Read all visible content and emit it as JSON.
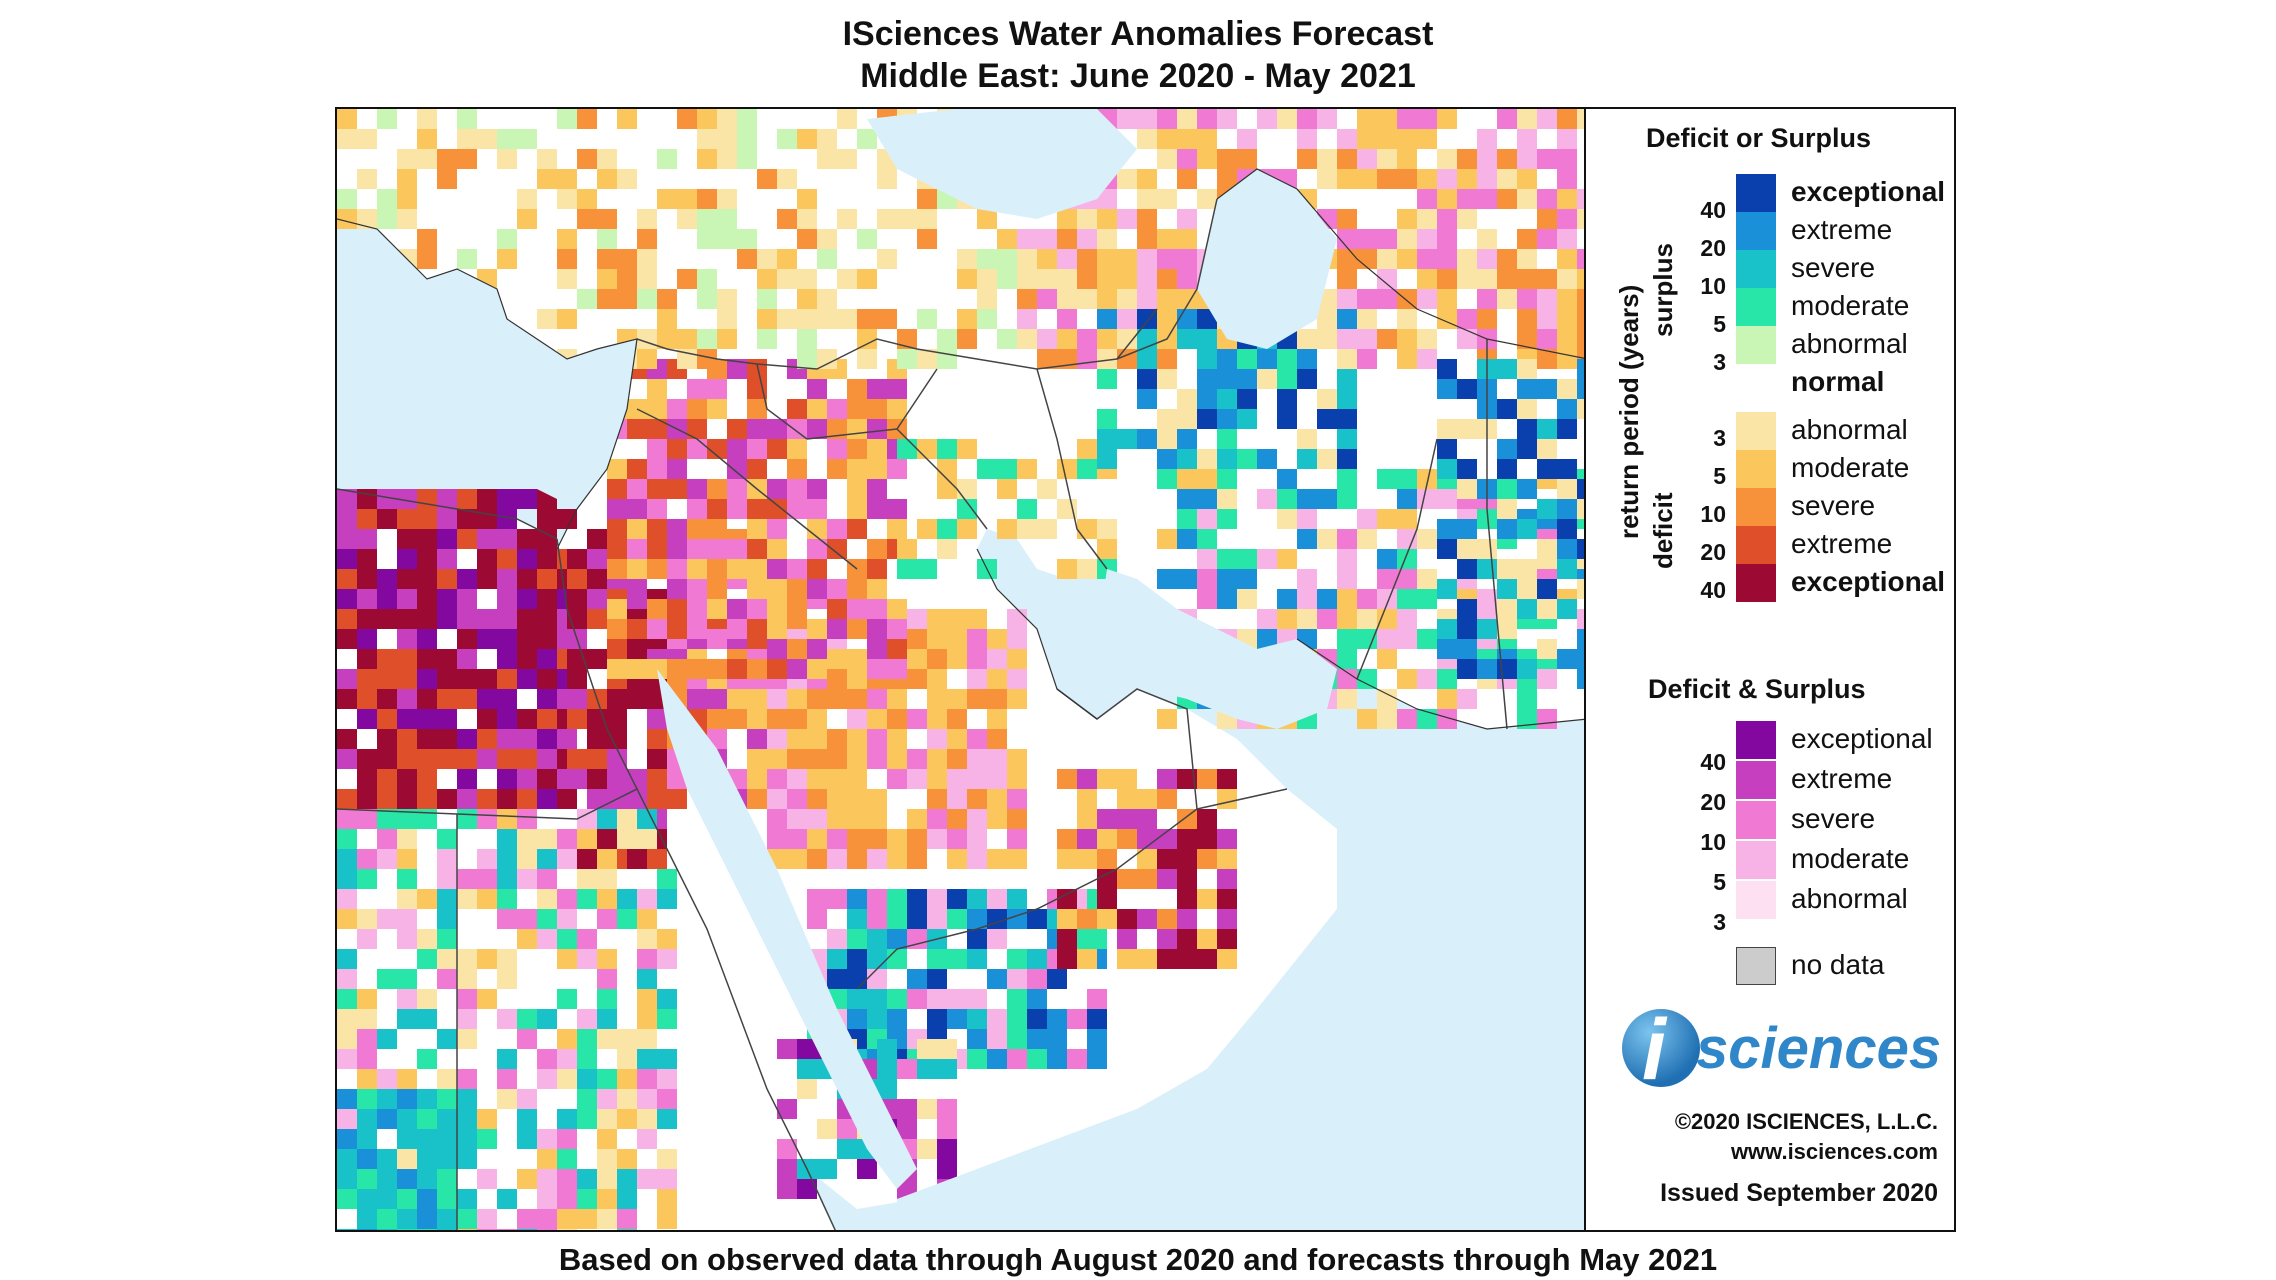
{
  "title": {
    "line1": "ISciences Water Anomalies Forecast",
    "line2": "Middle East: June 2020 - May 2021"
  },
  "footer": "Based on observed data through August 2020 and forecasts through May 2021",
  "legend": {
    "section1_title": "Deficit or Surplus",
    "axis_label": "return period (years)",
    "surplus_label": "surplus",
    "deficit_label": "deficit",
    "surplus": [
      {
        "label": "exceptional",
        "color": "#0a3fae"
      },
      {
        "label": "extreme",
        "color": "#1a90d8"
      },
      {
        "label": "severe",
        "color": "#19c1c9"
      },
      {
        "label": "moderate",
        "color": "#27e6a8"
      },
      {
        "label": "abnormal",
        "color": "#c9f5b5"
      }
    ],
    "surplus_ticks": [
      "40",
      "20",
      "10",
      "5",
      "3"
    ],
    "normal": {
      "label": "normal",
      "color": "#ffffff"
    },
    "deficit": [
      {
        "label": "abnormal",
        "color": "#fae5a6"
      },
      {
        "label": "moderate",
        "color": "#fbc65c"
      },
      {
        "label": "severe",
        "color": "#f7923a"
      },
      {
        "label": "extreme",
        "color": "#df4f2a"
      },
      {
        "label": "exceptional",
        "color": "#9c0a34"
      }
    ],
    "deficit_ticks": [
      "3",
      "5",
      "10",
      "20",
      "40"
    ],
    "section2_title": "Deficit & Surplus",
    "both": [
      {
        "label": "exceptional",
        "color": "#8208a0"
      },
      {
        "label": "extreme",
        "color": "#c53fbf"
      },
      {
        "label": "severe",
        "color": "#f07ad3"
      },
      {
        "label": "moderate",
        "color": "#f8b3e6"
      },
      {
        "label": "abnormal",
        "color": "#fde0f1"
      }
    ],
    "both_ticks": [
      "40",
      "20",
      "10",
      "5",
      "3"
    ],
    "no_data": {
      "label": "no data",
      "color": "#cccccc"
    }
  },
  "logo": {
    "text": "sciences",
    "letter": "i"
  },
  "credits": {
    "copyright": "©2020 ISCIENCES, L.L.C.",
    "website": "www.isciences.com",
    "issued": "Issued September 2020"
  },
  "map": {
    "water_color": "#d9f0fa",
    "land_color": "#ffffff",
    "border_color": "#444444"
  }
}
